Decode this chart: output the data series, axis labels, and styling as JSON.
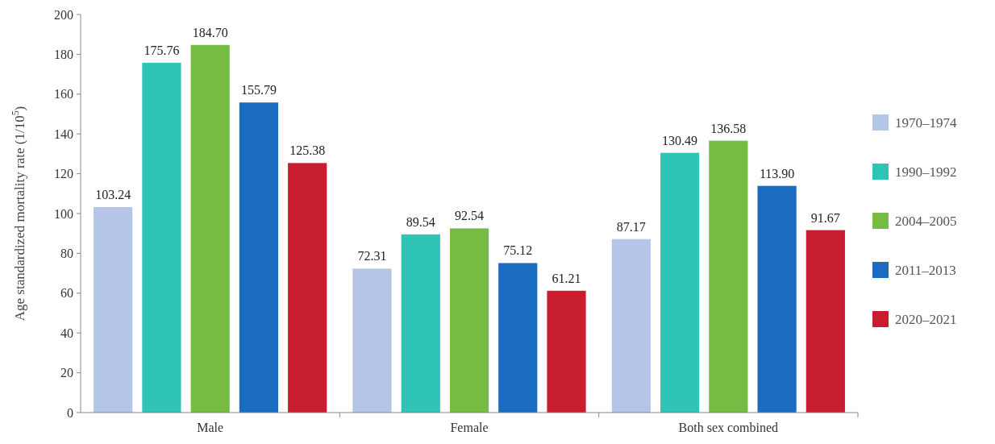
{
  "chart_data": {
    "type": "bar",
    "ylabel": "Age standardized mortality rate (1/10$^{5}$)",
    "categories": [
      "Male",
      "Female",
      "Both sex combined"
    ],
    "series": [
      {
        "name": "1970–1974",
        "color": "#b4c5e8",
        "values": [
          103.24,
          72.31,
          87.17
        ],
        "value_labels": [
          "103.24",
          "72.31",
          "87.17"
        ]
      },
      {
        "name": "1990–1992",
        "color": "#30c4b6",
        "values": [
          175.76,
          89.54,
          130.49
        ],
        "value_labels": [
          "175.76",
          "89.54",
          "130.49"
        ]
      },
      {
        "name": "2004–2005",
        "color": "#76bc43",
        "values": [
          184.7,
          92.54,
          136.58
        ],
        "value_labels": [
          "184.70",
          "92.54",
          "136.58"
        ]
      },
      {
        "name": "2011–2013",
        "color": "#1a6cc0",
        "values": [
          155.79,
          75.12,
          113.9
        ],
        "value_labels": [
          "155.79",
          "75.12",
          "113.90"
        ]
      },
      {
        "name": "2020–2021",
        "color": "#c81e30",
        "values": [
          125.38,
          61.21,
          91.67
        ],
        "value_labels": [
          "125.38",
          "61.21",
          "91.67"
        ]
      }
    ],
    "ylim": [
      0,
      200
    ],
    "yticks": [
      0,
      20,
      40,
      60,
      80,
      100,
      120,
      140,
      160,
      180,
      200
    ],
    "legend": "right"
  }
}
